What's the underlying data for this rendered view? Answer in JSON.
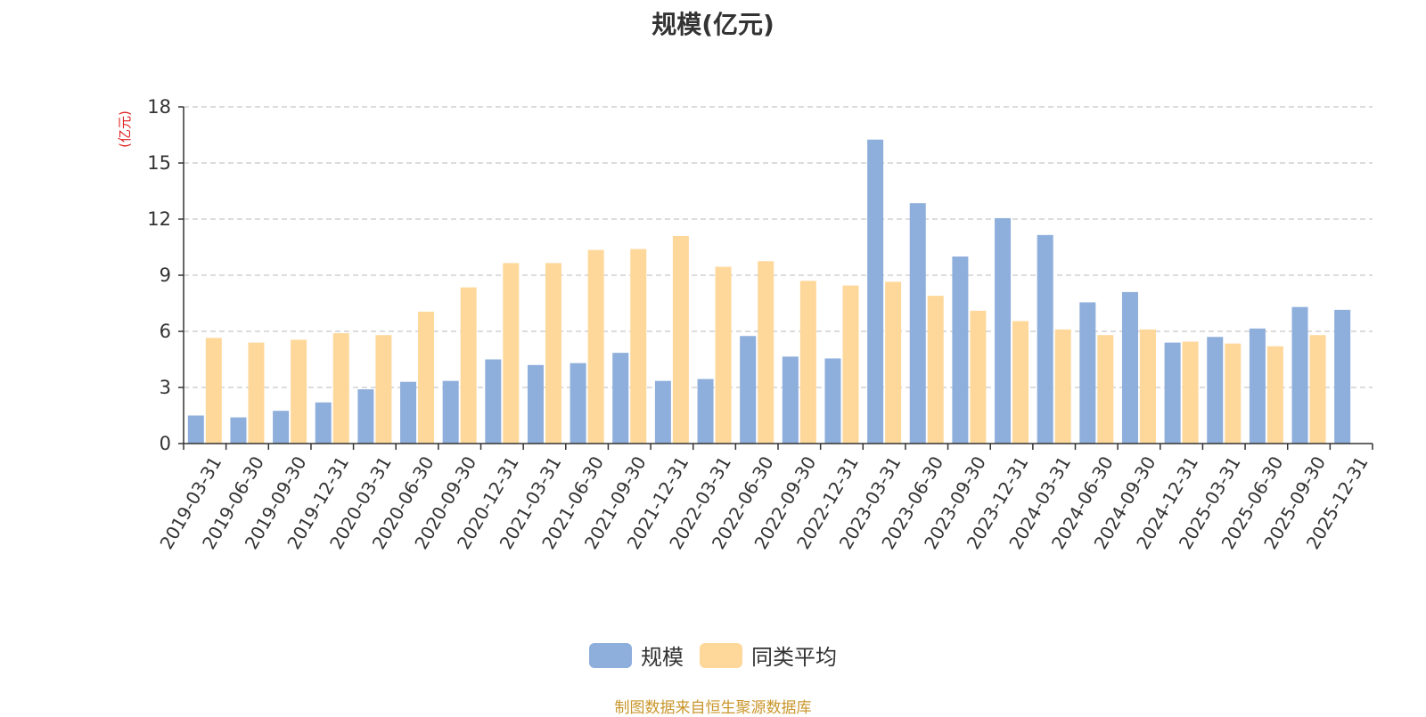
{
  "chart_data": {
    "type": "bar",
    "title": "规模(亿元)",
    "ylabel": "(亿元)",
    "xlabel": "",
    "ylim": [
      0,
      18
    ],
    "yticks": [
      0,
      3,
      6,
      9,
      12,
      15,
      18
    ],
    "grid": true,
    "legend_placement": "bottom-center",
    "categories": [
      "2019-03-31",
      "2019-06-30",
      "2019-09-30",
      "2019-12-31",
      "2020-03-31",
      "2020-06-30",
      "2020-09-30",
      "2020-12-31",
      "2021-03-31",
      "2021-06-30",
      "2021-09-30",
      "2021-12-31",
      "2022-03-31",
      "2022-06-30",
      "2022-09-30",
      "2022-12-31",
      "2023-03-31",
      "2023-06-30",
      "2023-09-30",
      "2023-12-31",
      "2024-03-31",
      "2024-06-30",
      "2024-09-30",
      "2024-12-31",
      "2025-03-31",
      "2025-06-30",
      "2025-09-30",
      "2025-12-31"
    ],
    "series": [
      {
        "name": "规模",
        "color": "#8eaedb",
        "values": [
          1.5,
          1.4,
          1.75,
          2.2,
          2.9,
          3.3,
          3.35,
          4.5,
          4.2,
          4.3,
          4.85,
          3.35,
          3.45,
          5.75,
          4.65,
          4.55,
          16.25,
          12.85,
          10.0,
          12.05,
          11.15,
          7.55,
          8.1,
          5.4,
          5.7,
          6.15,
          7.3,
          7.15
        ]
      },
      {
        "name": "同类平均",
        "color": "#fed89b",
        "values": [
          5.65,
          5.4,
          5.55,
          5.9,
          5.8,
          7.05,
          8.35,
          9.65,
          9.65,
          10.35,
          10.4,
          11.1,
          9.45,
          9.75,
          8.7,
          8.45,
          8.65,
          7.9,
          7.1,
          6.55,
          6.1,
          5.8,
          6.1,
          5.45,
          5.35,
          5.2,
          5.8,
          null
        ]
      }
    ]
  },
  "legend": [
    {
      "label": "规模",
      "color": "#8eaedb"
    },
    {
      "label": "同类平均",
      "color": "#fed89b"
    }
  ],
  "source_note": "制图数据来自恒生聚源数据库"
}
